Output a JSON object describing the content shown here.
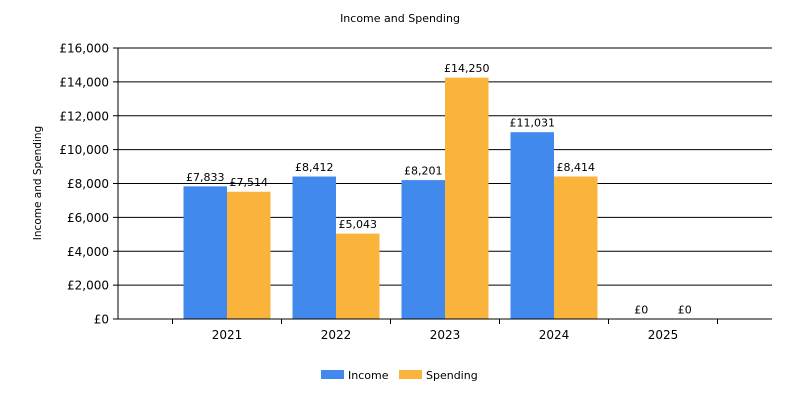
{
  "chart_data": {
    "type": "bar",
    "title": "Income and Spending",
    "ylabel": "Income and Spending",
    "xlabel": "",
    "categories": [
      "2021",
      "2022",
      "2023",
      "2024",
      "2025"
    ],
    "series": [
      {
        "name": "Income",
        "color": "#4189ed",
        "values": [
          7833,
          8412,
          8201,
          11031,
          0
        ],
        "labels": [
          "£7,833",
          "£8,412",
          "£8,201",
          "£11,031",
          "£0"
        ]
      },
      {
        "name": "Spending",
        "color": "#fab43c",
        "values": [
          7514,
          5043,
          14250,
          8414,
          0
        ],
        "labels": [
          "£7,514",
          "£5,043",
          "£14,250",
          "£8,414",
          "£0"
        ]
      }
    ],
    "ylim": [
      0,
      16000
    ],
    "yticks": [
      0,
      2000,
      4000,
      6000,
      8000,
      10000,
      12000,
      14000,
      16000
    ],
    "ytick_labels": [
      "£0",
      "£2,000",
      "£4,000",
      "£6,000",
      "£8,000",
      "£10,000",
      "£12,000",
      "£14,000",
      "£16,000"
    ],
    "grid": true,
    "legend_position": "bottom-center"
  }
}
